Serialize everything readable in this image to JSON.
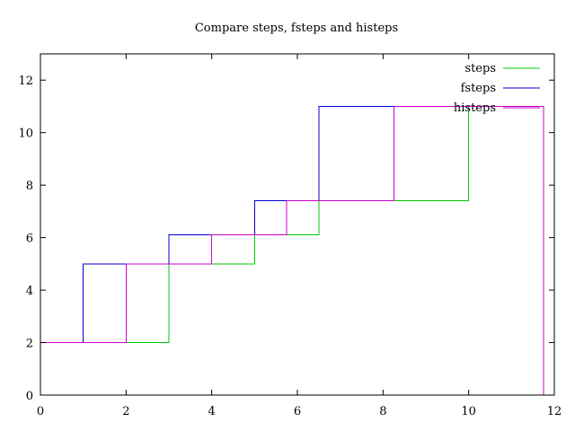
{
  "chart_data": {
    "type": "line",
    "title": "Compare steps, fsteps and histeps",
    "xlabel": "",
    "ylabel": "",
    "xlim": [
      0,
      12
    ],
    "ylim": [
      0,
      13
    ],
    "xticks": [
      0,
      2,
      4,
      6,
      8,
      10,
      12
    ],
    "yticks": [
      0,
      2,
      4,
      6,
      8,
      10,
      12
    ],
    "grid": false,
    "legend_position": "top-right",
    "series": [
      {
        "name": "steps",
        "style": "steps",
        "color": "#00cc00",
        "x": [
          1,
          3,
          5,
          6.5,
          10
        ],
        "y": [
          2,
          5,
          6.1,
          7.4,
          11
        ]
      },
      {
        "name": "fsteps",
        "style": "fsteps",
        "color": "#0000cc",
        "x": [
          1,
          3,
          5,
          6.5,
          10
        ],
        "y": [
          2,
          5,
          6.1,
          7.4,
          11
        ]
      },
      {
        "name": "histeps",
        "style": "histeps",
        "color": "#cc00cc",
        "x": [
          1,
          3,
          5,
          6.5,
          10
        ],
        "y": [
          2,
          5,
          6.1,
          7.4,
          11
        ]
      }
    ]
  }
}
